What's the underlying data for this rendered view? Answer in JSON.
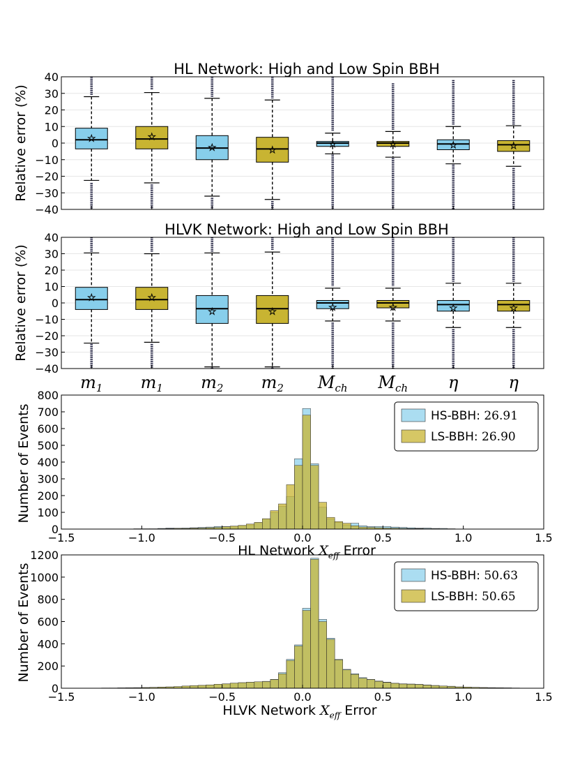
{
  "colors": {
    "blue": "#87ceeb",
    "olive": "#c8b432",
    "edge": "#000000"
  },
  "chart_data": [
    {
      "type": "box",
      "title": "HL Network: High and Low Spin BBH",
      "ylabel": "Relative error (%)",
      "ylim": [
        -40,
        40
      ],
      "yticks": [
        "40",
        "30",
        "20",
        "10",
        "0",
        "−10",
        "−20",
        "−30",
        "−40"
      ],
      "boxes": [
        {
          "q1": -3.5,
          "median": 2.0,
          "q3": 9.0,
          "mean": 3.0,
          "wlo": -22.5,
          "whi": 28.0,
          "fliers_lo": [
            -40,
            -24
          ],
          "fliers_hi": [
            29,
            40
          ],
          "color": "blue"
        },
        {
          "q1": -3.5,
          "median": 2.5,
          "q3": 10.0,
          "mean": 4.0,
          "wlo": -24.0,
          "whi": 30.5,
          "fliers_lo": [
            -40,
            -25
          ],
          "fliers_hi": [
            32,
            40
          ],
          "color": "olive"
        },
        {
          "q1": -10.0,
          "median": -3.0,
          "q3": 4.5,
          "mean": -2.5,
          "wlo": -32.0,
          "whi": 27.0,
          "fliers_lo": [
            -40,
            -33
          ],
          "fliers_hi": [
            28,
            40
          ],
          "color": "blue"
        },
        {
          "q1": -11.5,
          "median": -3.5,
          "q3": 3.5,
          "mean": -4.0,
          "wlo": -34.0,
          "whi": 26.0,
          "fliers_lo": [
            -40,
            -35
          ],
          "fliers_hi": [
            27,
            40
          ],
          "color": "olive"
        },
        {
          "q1": -2.0,
          "median": 0.0,
          "q3": 1.0,
          "mean": -0.5,
          "wlo": -6.5,
          "whi": 6.0,
          "fliers_lo": [
            -40,
            -7
          ],
          "fliers_hi": [
            7,
            40
          ],
          "color": "blue"
        },
        {
          "q1": -2.0,
          "median": 0.0,
          "q3": 1.0,
          "mean": -0.5,
          "wlo": -8.5,
          "whi": 7.0,
          "fliers_lo": [
            -40,
            -9
          ],
          "fliers_hi": [
            8,
            36
          ],
          "color": "olive"
        },
        {
          "q1": -4.0,
          "median": -0.5,
          "q3": 2.0,
          "mean": -1.0,
          "wlo": -12.5,
          "whi": 10.0,
          "fliers_lo": [
            -40,
            -13
          ],
          "fliers_hi": [
            11,
            38
          ],
          "color": "blue"
        },
        {
          "q1": -5.0,
          "median": -1.0,
          "q3": 1.5,
          "mean": -1.5,
          "wlo": -14.0,
          "whi": 10.5,
          "fliers_lo": [
            -40,
            -15
          ],
          "fliers_hi": [
            11,
            38
          ],
          "color": "olive"
        }
      ]
    },
    {
      "type": "box",
      "title": "HLVK Network: High and Low Spin BBH",
      "ylabel": "Relative error (%)",
      "ylim": [
        -40,
        40
      ],
      "yticks": [
        "40",
        "30",
        "20",
        "10",
        "0",
        "−10",
        "−20",
        "−30",
        "−40"
      ],
      "categories": [
        "m",
        "m",
        "m",
        "m",
        "M",
        "M",
        "η",
        "η"
      ],
      "category_subscripts": [
        "1",
        "1",
        "2",
        "2",
        "ch",
        "ch",
        "",
        ""
      ],
      "boxes": [
        {
          "q1": -4.0,
          "median": 2.0,
          "q3": 9.5,
          "mean": 3.5,
          "wlo": -24.5,
          "whi": 30.5,
          "fliers_lo": [
            -40,
            -25
          ],
          "fliers_hi": [
            31,
            40
          ],
          "color": "blue"
        },
        {
          "q1": -4.0,
          "median": 2.0,
          "q3": 9.5,
          "mean": 3.5,
          "wlo": -24.0,
          "whi": 30.0,
          "fliers_lo": [
            -40,
            -25
          ],
          "fliers_hi": [
            31,
            40
          ],
          "color": "olive"
        },
        {
          "q1": -12.5,
          "median": -3.5,
          "q3": 4.5,
          "mean": -5.0,
          "wlo": -39.0,
          "whi": 30.5,
          "fliers_lo": [
            -40,
            -39.5
          ],
          "fliers_hi": [
            31,
            40
          ],
          "color": "blue"
        },
        {
          "q1": -12.5,
          "median": -3.5,
          "q3": 4.5,
          "mean": -5.0,
          "wlo": -39.0,
          "whi": 31.0,
          "fliers_lo": [
            -40,
            -39.5
          ],
          "fliers_hi": [
            32,
            40
          ],
          "color": "olive"
        },
        {
          "q1": -3.5,
          "median": 0.0,
          "q3": 1.5,
          "mean": -2.5,
          "wlo": -11.0,
          "whi": 9.0,
          "fliers_lo": [
            -40,
            -12
          ],
          "fliers_hi": [
            10,
            40
          ],
          "color": "blue"
        },
        {
          "q1": -3.0,
          "median": 0.0,
          "q3": 1.5,
          "mean": -2.5,
          "wlo": -11.0,
          "whi": 9.0,
          "fliers_lo": [
            -40,
            -12
          ],
          "fliers_hi": [
            10,
            40
          ],
          "color": "olive"
        },
        {
          "q1": -5.0,
          "median": -1.0,
          "q3": 1.5,
          "mean": -3.0,
          "wlo": -15.0,
          "whi": 12.0,
          "fliers_lo": [
            -40,
            -16
          ],
          "fliers_hi": [
            13,
            40
          ],
          "color": "blue"
        },
        {
          "q1": -5.0,
          "median": -1.0,
          "q3": 1.5,
          "mean": -3.0,
          "wlo": -15.0,
          "whi": 12.0,
          "fliers_lo": [
            -40,
            -16
          ],
          "fliers_hi": [
            13,
            40
          ],
          "color": "olive"
        }
      ]
    },
    {
      "type": "histogram",
      "xlabel": "HL Network",
      "xlabel_math": "X",
      "xlabel_math_sub": "eff",
      "xlabel_suffix": "Error",
      "ylabel": "Number of Events",
      "xlim": [
        -1.5,
        1.5
      ],
      "ylim": [
        0,
        800
      ],
      "xticks": [
        "−1.5",
        "−1.0",
        "−0.5",
        "0.0",
        "0.5",
        "1.0",
        "1.5"
      ],
      "yticks": [
        "0",
        "100",
        "200",
        "300",
        "400",
        "500",
        "600",
        "700",
        "800"
      ],
      "bin_start": -1.5,
      "bin_width": 0.05,
      "series": [
        {
          "name": "HS-BBH:",
          "value": "26.91",
          "color": "blue",
          "counts": [
            0,
            0,
            0,
            1,
            1,
            1,
            1,
            1,
            1,
            2,
            2,
            2,
            4,
            6,
            5,
            6,
            8,
            10,
            12,
            15,
            15,
            14,
            20,
            25,
            38,
            60,
            100,
            135,
            195,
            420,
            720,
            390,
            130,
            60,
            40,
            25,
            35,
            20,
            15,
            15,
            15,
            12,
            10,
            8,
            6,
            6,
            4,
            4,
            2,
            1,
            1,
            1,
            1,
            0,
            0,
            0,
            0,
            0,
            0,
            0
          ]
        },
        {
          "name": "LS-BBH:",
          "value": "26.90",
          "color": "olive",
          "counts": [
            0,
            0,
            0,
            0,
            1,
            1,
            1,
            1,
            1,
            1,
            1,
            1,
            2,
            3,
            4,
            4,
            5,
            6,
            8,
            10,
            14,
            18,
            22,
            30,
            40,
            62,
            110,
            150,
            265,
            380,
            680,
            380,
            160,
            70,
            45,
            35,
            20,
            12,
            10,
            8,
            6,
            5,
            4,
            3,
            3,
            2,
            2,
            1,
            1,
            1,
            1,
            0,
            0,
            0,
            0,
            0,
            0,
            0,
            0,
            0
          ]
        }
      ],
      "legend": "top-right"
    },
    {
      "type": "histogram",
      "xlabel": "HLVK Network",
      "xlabel_math": "X",
      "xlabel_math_sub": "eff",
      "xlabel_suffix": "Error",
      "ylabel": "Number of Events",
      "xlim": [
        -1.5,
        1.5
      ],
      "ylim": [
        0,
        1200
      ],
      "xticks": [
        "−1.5",
        "−1.0",
        "−0.5",
        "0.0",
        "0.5",
        "1.0",
        "1.5"
      ],
      "yticks": [
        "0",
        "200",
        "400",
        "600",
        "800",
        "1000",
        "1200"
      ],
      "bin_start": -1.5,
      "bin_width": 0.05,
      "series": [
        {
          "name": "HS-BBH:",
          "value": "50.63",
          "color": "blue",
          "counts": [
            0,
            0,
            1,
            1,
            1,
            2,
            2,
            3,
            4,
            5,
            6,
            8,
            10,
            12,
            14,
            18,
            22,
            25,
            30,
            35,
            38,
            45,
            50,
            55,
            58,
            62,
            80,
            140,
            260,
            390,
            720,
            1170,
            620,
            450,
            260,
            170,
            130,
            95,
            80,
            65,
            55,
            45,
            40,
            38,
            35,
            30,
            25,
            20,
            18,
            12,
            10,
            8,
            6,
            5,
            4,
            3,
            2,
            1,
            1,
            0
          ]
        },
        {
          "name": "LS-BBH:",
          "value": "50.65",
          "color": "olive",
          "counts": [
            0,
            0,
            1,
            1,
            1,
            2,
            2,
            3,
            4,
            5,
            6,
            8,
            10,
            12,
            15,
            20,
            23,
            26,
            30,
            36,
            40,
            46,
            50,
            54,
            58,
            60,
            78,
            130,
            250,
            380,
            700,
            1160,
            600,
            440,
            255,
            165,
            125,
            90,
            78,
            62,
            52,
            44,
            38,
            36,
            34,
            28,
            24,
            20,
            16,
            12,
            10,
            8,
            6,
            5,
            4,
            3,
            2,
            1,
            1,
            0
          ]
        }
      ],
      "legend": "top-right"
    }
  ]
}
